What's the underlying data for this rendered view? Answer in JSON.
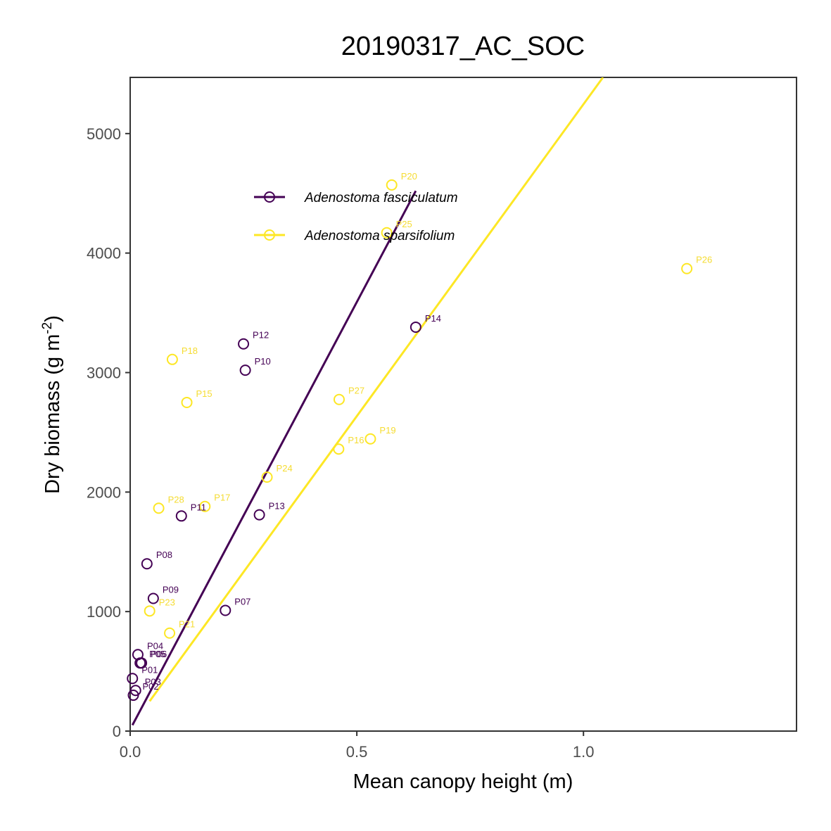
{
  "chart_data": {
    "type": "scatter",
    "title": "20190317_AC_SOC",
    "xlabel": "Mean canopy height (m)",
    "ylabel_main": "Dry biomass (g m",
    "ylabel_sup": "-2",
    "ylabel_end": ")",
    "xlim": [
      0,
      1.47
    ],
    "ylim": [
      0,
      5470
    ],
    "x_ticks": [
      {
        "value": 0,
        "label": "0.0"
      },
      {
        "value": 0.5,
        "label": "0.5"
      },
      {
        "value": 1.0,
        "label": "1.0"
      }
    ],
    "y_ticks": [
      {
        "value": 0,
        "label": "0"
      },
      {
        "value": 1000,
        "label": "1000"
      },
      {
        "value": 2000,
        "label": "2000"
      },
      {
        "value": 3000,
        "label": "3000"
      },
      {
        "value": 4000,
        "label": "4000"
      },
      {
        "value": 5000,
        "label": "5000"
      }
    ],
    "grid": false,
    "legend_position": "top-left",
    "series": [
      {
        "name": "Adenostoma fasciculatum",
        "color": "#440154",
        "label_color": "#440154",
        "points": [
          {
            "label": "P01",
            "x": 0.005,
            "y": 440
          },
          {
            "label": "P02",
            "x": 0.007,
            "y": 300
          },
          {
            "label": "P03",
            "x": 0.012,
            "y": 340
          },
          {
            "label": "P04",
            "x": 0.017,
            "y": 640
          },
          {
            "label": "P05",
            "x": 0.022,
            "y": 570
          },
          {
            "label": "P06",
            "x": 0.025,
            "y": 570
          },
          {
            "label": "P07",
            "x": 0.21,
            "y": 1010
          },
          {
            "label": "P08",
            "x": 0.037,
            "y": 1400
          },
          {
            "label": "P09",
            "x": 0.051,
            "y": 1110
          },
          {
            "label": "P10",
            "x": 0.254,
            "y": 3020
          },
          {
            "label": "P11",
            "x": 0.113,
            "y": 1800
          },
          {
            "label": "P12",
            "x": 0.25,
            "y": 3240
          },
          {
            "label": "P13",
            "x": 0.285,
            "y": 1810
          },
          {
            "label": "P14",
            "x": 0.63,
            "y": 3380
          }
        ],
        "fit": {
          "x0": 0.005,
          "y0": 50,
          "x1": 0.63,
          "y1": 4520
        }
      },
      {
        "name": "Adenostoma sparsifolium",
        "color": "#fde725",
        "label_color": "#f5dc32",
        "points": [
          {
            "label": "P15",
            "x": 0.125,
            "y": 2750
          },
          {
            "label": "P16",
            "x": 0.46,
            "y": 2360
          },
          {
            "label": "P17",
            "x": 0.165,
            "y": 1880
          },
          {
            "label": "P18",
            "x": 0.093,
            "y": 3110
          },
          {
            "label": "P19",
            "x": 0.53,
            "y": 2445
          },
          {
            "label": "P20",
            "x": 0.577,
            "y": 4570
          },
          {
            "label": "P21",
            "x": 0.087,
            "y": 820
          },
          {
            "label": "P23",
            "x": 0.043,
            "y": 1005
          },
          {
            "label": "P24",
            "x": 0.302,
            "y": 2125
          },
          {
            "label": "P25",
            "x": 0.566,
            "y": 4170
          },
          {
            "label": "P26",
            "x": 1.228,
            "y": 3870
          },
          {
            "label": "P27",
            "x": 0.461,
            "y": 2775
          },
          {
            "label": "P28",
            "x": 0.063,
            "y": 1865
          }
        ],
        "fit": {
          "x0": 0.043,
          "y0": 250,
          "x1": 1.043,
          "y1": 5470
        }
      }
    ]
  }
}
